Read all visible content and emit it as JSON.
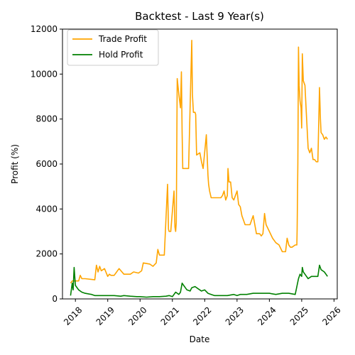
{
  "chart_data": {
    "type": "line",
    "title": "Backtest - Last 9 Year(s)",
    "xlabel": "Date",
    "ylabel": "Profit (%)",
    "xlim": [
      2017.6,
      2026.1
    ],
    "ylim": [
      0,
      12000
    ],
    "x_ticks": [
      2018,
      2019,
      2020,
      2021,
      2022,
      2023,
      2024,
      2025,
      2026
    ],
    "x_tick_labels": [
      "2018",
      "2019",
      "2020",
      "2021",
      "2022",
      "2023",
      "2024",
      "2025",
      "2026"
    ],
    "y_ticks": [
      0,
      2000,
      4000,
      6000,
      8000,
      10000,
      12000
    ],
    "y_tick_labels": [
      "0",
      "2000",
      "4000",
      "6000",
      "8000",
      "10000",
      "12000"
    ],
    "grid": false,
    "legend_position": "top-left",
    "series": [
      {
        "name": "Trade Profit",
        "color": "#ffa500",
        "x": [
          2017.85,
          2017.9,
          2017.95,
          2018.0,
          2018.1,
          2018.15,
          2018.2,
          2018.3,
          2018.6,
          2018.65,
          2018.7,
          2018.75,
          2018.8,
          2018.9,
          2019.0,
          2019.05,
          2019.1,
          2019.15,
          2019.2,
          2019.35,
          2019.5,
          2019.7,
          2019.8,
          2019.95,
          2020.05,
          2020.1,
          2020.3,
          2020.4,
          2020.5,
          2020.55,
          2020.6,
          2020.75,
          2020.85,
          2020.88,
          2020.9,
          2020.95,
          2021.05,
          2021.08,
          2021.1,
          2021.12,
          2021.15,
          2021.2,
          2021.25,
          2021.28,
          2021.3,
          2021.32,
          2021.35,
          2021.38,
          2021.4,
          2021.45,
          2021.5,
          2021.6,
          2021.62,
          2021.65,
          2021.7,
          2021.72,
          2021.75,
          2021.85,
          2021.9,
          2021.95,
          2022.05,
          2022.1,
          2022.12,
          2022.15,
          2022.2,
          2022.25,
          2022.5,
          2022.55,
          2022.6,
          2022.65,
          2022.7,
          2022.72,
          2022.75,
          2022.8,
          2022.85,
          2022.9,
          2023.0,
          2023.05,
          2023.1,
          2023.15,
          2023.25,
          2023.3,
          2023.4,
          2023.5,
          2023.6,
          2023.7,
          2023.75,
          2023.8,
          2023.85,
          2023.9,
          2024.0,
          2024.1,
          2024.2,
          2024.3,
          2024.4,
          2024.5,
          2024.55,
          2024.6,
          2024.65,
          2024.7,
          2024.8,
          2024.85,
          2024.86,
          2024.88,
          2024.9,
          2024.92,
          2024.95,
          2024.98,
          2025.0,
          2025.02,
          2025.05,
          2025.1,
          2025.15,
          2025.2,
          2025.25,
          2025.3,
          2025.35,
          2025.4,
          2025.45,
          2025.5,
          2025.55,
          2025.58,
          2025.6,
          2025.65,
          2025.7,
          2025.75,
          2025.8
        ],
        "values": [
          700,
          800,
          800,
          800,
          800,
          1050,
          900,
          900,
          850,
          1500,
          1200,
          1450,
          1250,
          1350,
          1000,
          1100,
          1050,
          1050,
          1050,
          1350,
          1100,
          1100,
          1200,
          1150,
          1250,
          1600,
          1550,
          1450,
          1600,
          2200,
          1950,
          1950,
          5100,
          3100,
          3000,
          3000,
          4800,
          3200,
          3000,
          3400,
          9800,
          9100,
          8500,
          10100,
          7400,
          5800,
          5800,
          5800,
          5800,
          5800,
          5800,
          11500,
          9100,
          8300,
          8300,
          8200,
          6400,
          6500,
          6100,
          5800,
          7300,
          5500,
          5100,
          4800,
          4500,
          4500,
          4500,
          4600,
          4800,
          4400,
          4600,
          5800,
          5200,
          5200,
          4500,
          4400,
          4800,
          4200,
          4100,
          3700,
          3300,
          3300,
          3300,
          3700,
          2900,
          2900,
          2800,
          2900,
          3800,
          3300,
          3000,
          2700,
          2500,
          2400,
          2100,
          2100,
          2700,
          2400,
          2300,
          2300,
          2400,
          2400,
          3100,
          6000,
          11200,
          9500,
          8800,
          8500,
          7600,
          10900,
          9700,
          9500,
          8100,
          6700,
          6500,
          6700,
          6200,
          6200,
          6100,
          6100,
          9400,
          8000,
          7400,
          7300,
          7100,
          7200,
          7100
        ]
      },
      {
        "name": "Hold Profit",
        "color": "#008000",
        "x": [
          2017.85,
          2017.9,
          2017.93,
          2017.96,
          2018.0,
          2018.05,
          2018.1,
          2018.2,
          2018.3,
          2018.5,
          2018.6,
          2018.8,
          2019.0,
          2019.2,
          2019.4,
          2019.5,
          2019.7,
          2019.9,
          2020.0,
          2020.2,
          2020.4,
          2020.6,
          2020.8,
          2020.9,
          2021.0,
          2021.1,
          2021.2,
          2021.25,
          2021.3,
          2021.35,
          2021.4,
          2021.45,
          2021.55,
          2021.6,
          2021.7,
          2021.8,
          2021.9,
          2022.0,
          2022.1,
          2022.2,
          2022.3,
          2022.5,
          2022.7,
          2022.9,
          2023.0,
          2023.1,
          2023.3,
          2023.5,
          2023.7,
          2023.9,
          2024.0,
          2024.2,
          2024.4,
          2024.6,
          2024.8,
          2024.9,
          2024.95,
          2025.0,
          2025.02,
          2025.05,
          2025.1,
          2025.15,
          2025.2,
          2025.3,
          2025.4,
          2025.5,
          2025.55,
          2025.6,
          2025.7,
          2025.8
        ],
        "values": [
          150,
          700,
          400,
          1400,
          600,
          500,
          400,
          300,
          250,
          200,
          150,
          150,
          150,
          150,
          120,
          150,
          120,
          100,
          100,
          80,
          100,
          100,
          120,
          150,
          100,
          300,
          200,
          300,
          700,
          600,
          500,
          400,
          350,
          500,
          550,
          450,
          350,
          400,
          250,
          200,
          150,
          150,
          150,
          200,
          150,
          200,
          200,
          250,
          250,
          250,
          250,
          200,
          250,
          250,
          200,
          900,
          1100,
          1000,
          1400,
          1200,
          1100,
          1000,
          900,
          1000,
          1000,
          1000,
          1500,
          1300,
          1200,
          1000
        ]
      }
    ]
  }
}
